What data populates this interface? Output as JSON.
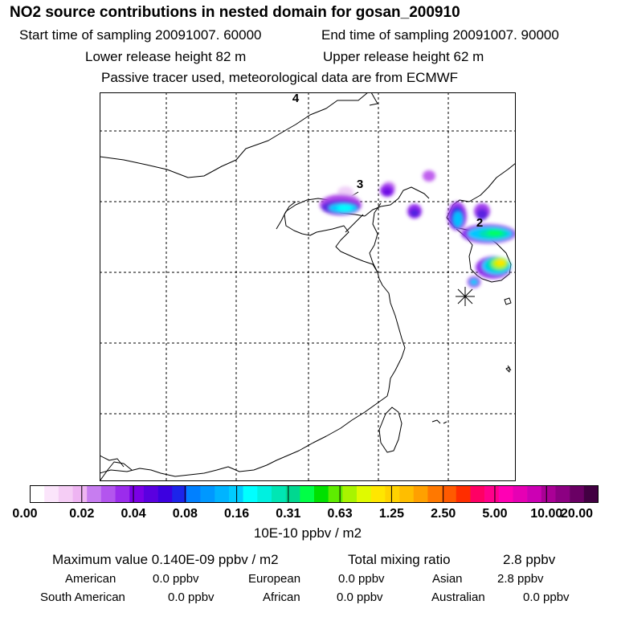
{
  "header": {
    "title": "NO2 source contributions in nested domain for gosan_200910",
    "start_label": "Start time of sampling 20091007. 60000",
    "end_label": "End time of sampling 20091007. 90000",
    "lower_label": "Lower release height   82 m",
    "upper_label": "Upper release height   62 m",
    "tracer_label": "Passive tracer used, meteorological data are from ECMWF"
  },
  "map": {
    "markers": [
      "4",
      "3",
      "2"
    ],
    "background": "#ffffff",
    "coast_color": "#000000"
  },
  "colorbar": {
    "colors": [
      "#ffffff",
      "#fbe5fb",
      "#f5cdf5",
      "#eeb4f2",
      "#c77df0",
      "#b355ee",
      "#9b2cec",
      "#7b00e6",
      "#5a00e0",
      "#3c00e0",
      "#1c24ea",
      "#0080ff",
      "#0098ff",
      "#00b4ff",
      "#00ccff",
      "#00ffff",
      "#00f0e0",
      "#00e6b4",
      "#00d890",
      "#00ff46",
      "#00e000",
      "#5eec00",
      "#a8f400",
      "#e0fa00",
      "#ffe600",
      "#ffd200",
      "#ffbe00",
      "#ffa000",
      "#ff7800",
      "#ff5a00",
      "#ff2d00",
      "#ff0064",
      "#ff008c",
      "#ff00b4",
      "#e600b4",
      "#cc00b4",
      "#aa0096",
      "#8c0082",
      "#6a0064",
      "#420042"
    ],
    "ticks": [
      "0.00",
      "0.02",
      "0.04",
      "0.08",
      "0.16",
      "0.31",
      "0.63",
      "1.25",
      "2.50",
      "5.00",
      "10.00",
      "20.00"
    ],
    "unit": "10E-10 ppbv / m2"
  },
  "footer": {
    "max_label": "Maximum value  0.140E-09 ppbv / m2",
    "total_label": "Total mixing ratio",
    "total_value": "2.8 ppbv",
    "american_label": "American",
    "american_value": "0.0 ppbv",
    "european_label": "European",
    "european_value": "0.0 ppbv",
    "asian_label": "Asian",
    "asian_value": "2.8 ppbv",
    "south_american_label": "South American",
    "south_american_value": "0.0 ppbv",
    "african_label": "African",
    "african_value": "0.0 ppbv",
    "australian_label": "Australian",
    "australian_value": "0.0 ppbv"
  }
}
